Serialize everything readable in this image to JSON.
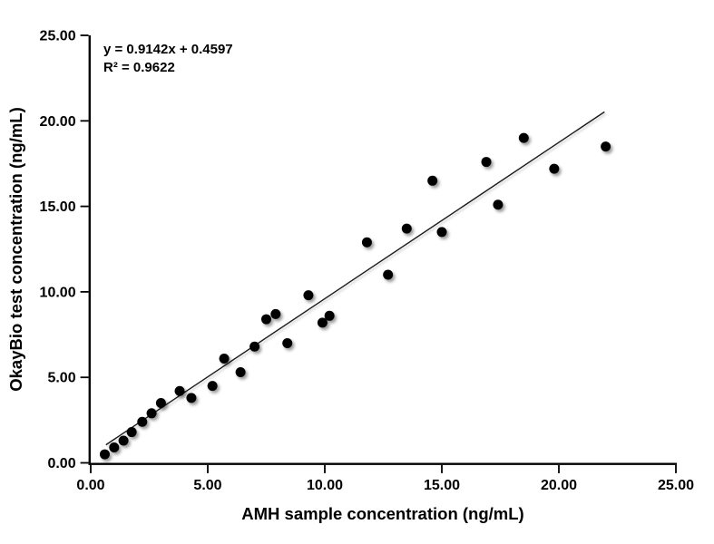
{
  "chart_data": {
    "type": "scatter",
    "title": "",
    "xlabel": "AMH sample concentration (ng/mL)",
    "ylabel": "OkayBio test concentration (ng/mL)",
    "xlim": [
      0,
      25
    ],
    "ylim": [
      0,
      25
    ],
    "grid": false,
    "legend_position": "none",
    "x_tick_values": [
      0,
      5,
      10,
      15,
      20,
      25
    ],
    "x_tick_labels": [
      "0.00",
      "5.00",
      "10.00",
      "15.00",
      "20.00",
      "25.00"
    ],
    "y_tick_values": [
      0,
      5,
      10,
      15,
      20,
      25
    ],
    "y_tick_labels": [
      "0.00",
      "5.00",
      "10.00",
      "15.00",
      "20.00",
      "25.00"
    ],
    "points": [
      [
        0.6,
        0.5
      ],
      [
        1.0,
        0.9
      ],
      [
        1.4,
        1.3
      ],
      [
        1.75,
        1.8
      ],
      [
        2.2,
        2.4
      ],
      [
        2.6,
        2.9
      ],
      [
        3.0,
        3.5
      ],
      [
        3.8,
        4.2
      ],
      [
        4.3,
        3.8
      ],
      [
        5.2,
        4.5
      ],
      [
        5.7,
        6.1
      ],
      [
        6.4,
        5.3
      ],
      [
        7.0,
        6.8
      ],
      [
        7.5,
        8.4
      ],
      [
        7.9,
        8.7
      ],
      [
        8.4,
        7.0
      ],
      [
        9.3,
        9.8
      ],
      [
        9.9,
        8.2
      ],
      [
        10.2,
        8.6
      ],
      [
        11.8,
        12.9
      ],
      [
        12.7,
        11.0
      ],
      [
        13.5,
        13.7
      ],
      [
        14.6,
        16.5
      ],
      [
        15.0,
        13.5
      ],
      [
        16.9,
        17.6
      ],
      [
        17.4,
        15.1
      ],
      [
        18.5,
        19.0
      ],
      [
        19.8,
        17.2
      ],
      [
        22.0,
        18.5
      ]
    ],
    "trendline": {
      "slope": 0.9142,
      "intercept": 0.4597,
      "x_start": 0.65,
      "x_end": 21.95
    },
    "annotation": {
      "equation": "y = 0.9142x + 0.4597",
      "r_squared": "R² = 0.9622"
    },
    "marker_color": "#000000",
    "trendline_color": "#1a1a1a",
    "axis_color": "#000000",
    "background_color": "#ffffff"
  }
}
